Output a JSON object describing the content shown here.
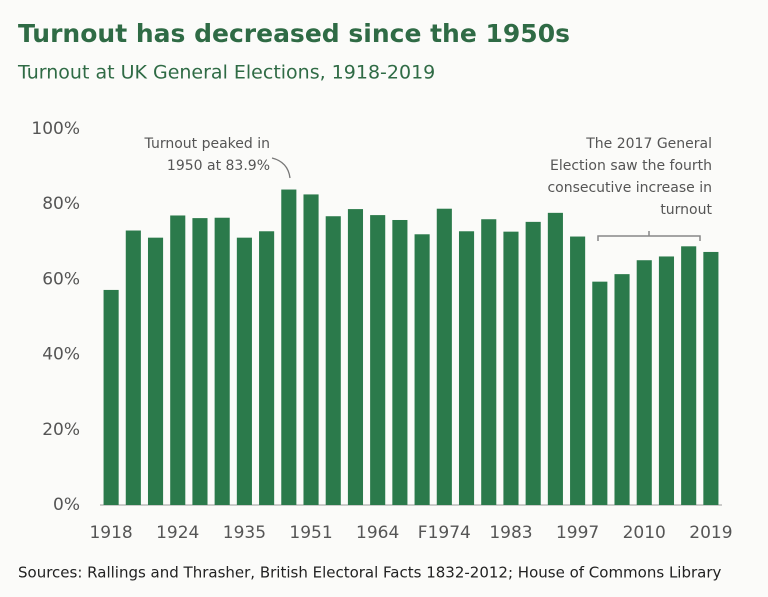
{
  "chart_data": {
    "type": "bar",
    "title": "Turnout has decreased since the 1950s",
    "subtitle": "Turnout at UK General Elections, 1918-2019",
    "categories": [
      "1918",
      null,
      null,
      "1924",
      null,
      null,
      "1935",
      null,
      null,
      "1951",
      null,
      null,
      "1964",
      null,
      null,
      "F1974",
      null,
      null,
      "1983",
      null,
      null,
      "1997",
      null,
      null,
      "2010",
      null,
      null,
      "2019"
    ],
    "values": [
      57.2,
      73,
      71.1,
      77,
      76.3,
      76.4,
      71.1,
      72.8,
      83.9,
      82.6,
      76.8,
      78.7,
      77.1,
      75.8,
      72,
      78.8,
      72.8,
      76,
      72.7,
      75.3,
      77.7,
      71.4,
      59.4,
      61.4,
      65.1,
      66.1,
      68.8,
      67.3
    ],
    "color": "#2b7a4b",
    "ylim": [
      0,
      100
    ],
    "yticks": [
      {
        "value": 0,
        "label": "0%"
      },
      {
        "value": 20,
        "label": "20%"
      },
      {
        "value": 40,
        "label": "40%"
      },
      {
        "value": 60,
        "label": "60%"
      },
      {
        "value": 80,
        "label": "80%"
      },
      {
        "value": 100,
        "label": "100%"
      }
    ],
    "grid": false,
    "annotations": [
      {
        "lines": [
          "Turnout peaked in",
          "1950 at 83.9%"
        ]
      },
      {
        "lines": [
          "The 2017 General",
          "Election saw the fourth",
          "consecutive increase in",
          "turnout"
        ]
      }
    ],
    "source": "Sources: Rallings and Thrasher, British Electoral Facts 1832-2012; House of Commons Library"
  }
}
